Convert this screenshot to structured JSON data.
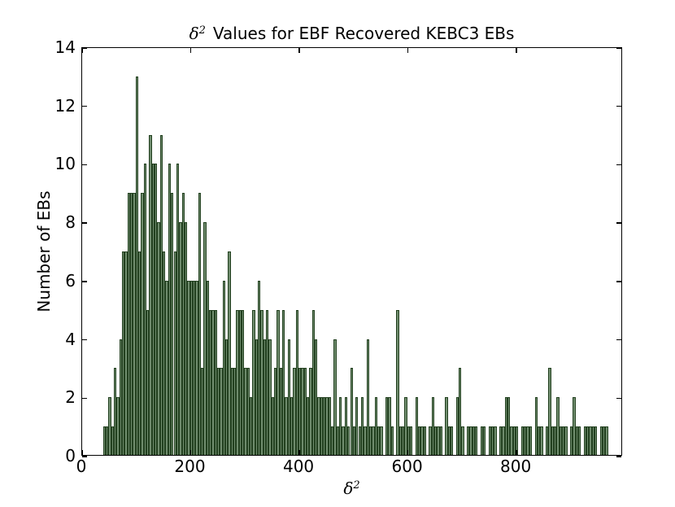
{
  "title": {
    "delta": "δ",
    "sup": "2",
    "text": "Values for EBF Recovered KEBC3 EBs"
  },
  "axes": {
    "ylabel": "Number of EBs",
    "xlabel_delta": "δ",
    "xlabel_sup": "2",
    "x_ticks": [
      0,
      200,
      400,
      600,
      800
    ],
    "y_ticks": [
      0,
      2,
      4,
      6,
      8,
      10,
      12,
      14
    ]
  },
  "colors": {
    "bar_fill": "#6f8c6d",
    "bar_edge": "#22401f",
    "axis": "#000000",
    "background": "#ffffff"
  },
  "chart_data": {
    "type": "bar",
    "title": "δ² Values for EBF Recovered KEBC3 EBs",
    "xlabel": "δ²",
    "ylabel": "Number of EBs",
    "xlim": [
      0,
      996
    ],
    "ylim": [
      0,
      14
    ],
    "grid": false,
    "legend": "none",
    "bin_width": 5,
    "bins": [
      [
        40,
        1
      ],
      [
        45,
        1
      ],
      [
        50,
        2
      ],
      [
        55,
        1
      ],
      [
        60,
        3
      ],
      [
        65,
        2
      ],
      [
        70,
        4
      ],
      [
        75,
        7
      ],
      [
        80,
        7
      ],
      [
        85,
        9
      ],
      [
        90,
        9
      ],
      [
        95,
        9
      ],
      [
        100,
        13
      ],
      [
        105,
        7
      ],
      [
        110,
        9
      ],
      [
        115,
        10
      ],
      [
        120,
        5
      ],
      [
        125,
        11
      ],
      [
        130,
        10
      ],
      [
        135,
        10
      ],
      [
        140,
        8
      ],
      [
        145,
        11
      ],
      [
        150,
        7
      ],
      [
        155,
        6
      ],
      [
        160,
        10
      ],
      [
        165,
        9
      ],
      [
        170,
        7
      ],
      [
        175,
        10
      ],
      [
        180,
        8
      ],
      [
        185,
        9
      ],
      [
        190,
        8
      ],
      [
        195,
        6
      ],
      [
        200,
        6
      ],
      [
        205,
        6
      ],
      [
        210,
        6
      ],
      [
        215,
        9
      ],
      [
        220,
        3
      ],
      [
        225,
        8
      ],
      [
        230,
        6
      ],
      [
        235,
        5
      ],
      [
        240,
        5
      ],
      [
        245,
        5
      ],
      [
        250,
        3
      ],
      [
        255,
        3
      ],
      [
        260,
        6
      ],
      [
        265,
        4
      ],
      [
        270,
        7
      ],
      [
        275,
        3
      ],
      [
        280,
        3
      ],
      [
        285,
        5
      ],
      [
        290,
        5
      ],
      [
        295,
        5
      ],
      [
        300,
        3
      ],
      [
        305,
        3
      ],
      [
        310,
        2
      ],
      [
        315,
        5
      ],
      [
        320,
        4
      ],
      [
        325,
        6
      ],
      [
        330,
        5
      ],
      [
        335,
        4
      ],
      [
        340,
        5
      ],
      [
        345,
        4
      ],
      [
        350,
        2
      ],
      [
        355,
        3
      ],
      [
        360,
        5
      ],
      [
        365,
        3
      ],
      [
        370,
        5
      ],
      [
        375,
        2
      ],
      [
        380,
        4
      ],
      [
        385,
        2
      ],
      [
        390,
        3
      ],
      [
        395,
        5
      ],
      [
        400,
        3
      ],
      [
        405,
        3
      ],
      [
        410,
        3
      ],
      [
        415,
        2
      ],
      [
        420,
        3
      ],
      [
        425,
        5
      ],
      [
        430,
        4
      ],
      [
        435,
        2
      ],
      [
        440,
        2
      ],
      [
        445,
        2
      ],
      [
        450,
        2
      ],
      [
        455,
        2
      ],
      [
        460,
        1
      ],
      [
        465,
        4
      ],
      [
        470,
        1
      ],
      [
        475,
        2
      ],
      [
        480,
        1
      ],
      [
        485,
        2
      ],
      [
        490,
        1
      ],
      [
        495,
        3
      ],
      [
        500,
        1
      ],
      [
        505,
        2
      ],
      [
        510,
        1
      ],
      [
        515,
        2
      ],
      [
        520,
        1
      ],
      [
        525,
        4
      ],
      [
        530,
        1
      ],
      [
        535,
        1
      ],
      [
        540,
        2
      ],
      [
        545,
        1
      ],
      [
        550,
        1
      ],
      [
        560,
        2
      ],
      [
        565,
        2
      ],
      [
        570,
        1
      ],
      [
        580,
        5
      ],
      [
        585,
        1
      ],
      [
        590,
        1
      ],
      [
        595,
        2
      ],
      [
        600,
        1
      ],
      [
        605,
        1
      ],
      [
        615,
        2
      ],
      [
        620,
        1
      ],
      [
        625,
        1
      ],
      [
        630,
        1
      ],
      [
        640,
        1
      ],
      [
        645,
        2
      ],
      [
        650,
        1
      ],
      [
        655,
        1
      ],
      [
        660,
        1
      ],
      [
        670,
        2
      ],
      [
        675,
        1
      ],
      [
        680,
        1
      ],
      [
        690,
        2
      ],
      [
        695,
        3
      ],
      [
        700,
        1
      ],
      [
        710,
        1
      ],
      [
        715,
        1
      ],
      [
        720,
        1
      ],
      [
        725,
        1
      ],
      [
        735,
        1
      ],
      [
        740,
        1
      ],
      [
        750,
        1
      ],
      [
        755,
        1
      ],
      [
        760,
        1
      ],
      [
        770,
        1
      ],
      [
        775,
        1
      ],
      [
        780,
        2
      ],
      [
        785,
        2
      ],
      [
        790,
        1
      ],
      [
        795,
        1
      ],
      [
        800,
        1
      ],
      [
        810,
        1
      ],
      [
        815,
        1
      ],
      [
        820,
        1
      ],
      [
        825,
        1
      ],
      [
        835,
        2
      ],
      [
        840,
        1
      ],
      [
        845,
        1
      ],
      [
        855,
        1
      ],
      [
        860,
        3
      ],
      [
        865,
        1
      ],
      [
        870,
        1
      ],
      [
        875,
        2
      ],
      [
        880,
        1
      ],
      [
        885,
        1
      ],
      [
        890,
        1
      ],
      [
        900,
        1
      ],
      [
        905,
        2
      ],
      [
        910,
        1
      ],
      [
        915,
        1
      ],
      [
        925,
        1
      ],
      [
        930,
        1
      ],
      [
        935,
        1
      ],
      [
        940,
        1
      ],
      [
        945,
        1
      ],
      [
        955,
        1
      ],
      [
        960,
        1
      ],
      [
        965,
        1
      ]
    ]
  }
}
